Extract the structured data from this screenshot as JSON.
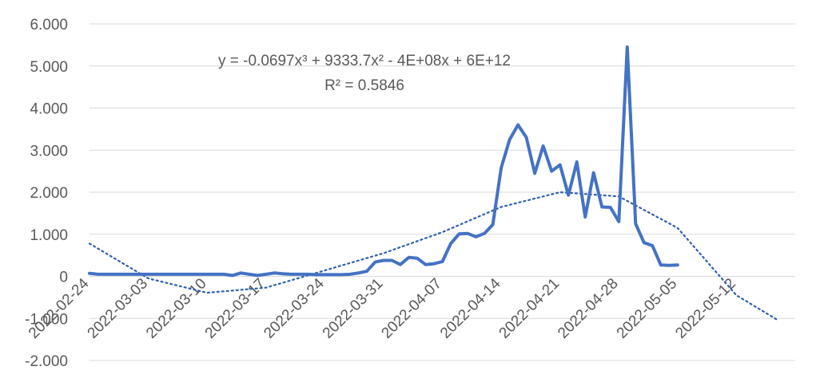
{
  "chart_data": {
    "type": "line",
    "title": "",
    "xlabel": "",
    "ylabel": "",
    "ylim": [
      -2000,
      6000
    ],
    "xlim": [
      "2022-02-24",
      "2022-05-19"
    ],
    "y_tick_labels": [
      "-2.000",
      "-1.000",
      "0",
      "1.000",
      "2.000",
      "3.000",
      "4.000",
      "5.000",
      "6.000"
    ],
    "y_tick_values": [
      -2000,
      -1000,
      0,
      1000,
      2000,
      3000,
      4000,
      5000,
      6000
    ],
    "x_tick_labels": [
      "2022-02-24",
      "2022-03-03",
      "2022-03-10",
      "2022-03-17",
      "2022-03-24",
      "2022-03-31",
      "2022-04-07",
      "2022-04-14",
      "2022-04-21",
      "2022-04-28",
      "2022-05-05",
      "2022-05-12"
    ],
    "grid": true,
    "legend": "none",
    "colors": {
      "series": "#4472c4",
      "trendline": "#2e5fb0",
      "grid": "#d9d9d9",
      "text": "#595959"
    },
    "series": [
      {
        "x": [
          "2022-02-24",
          "2022-02-25",
          "2022-02-26",
          "2022-02-27",
          "2022-02-28",
          "2022-03-01",
          "2022-03-02",
          "2022-03-03",
          "2022-03-04",
          "2022-03-05",
          "2022-03-06",
          "2022-03-07",
          "2022-03-08",
          "2022-03-09",
          "2022-03-10",
          "2022-03-11",
          "2022-03-12",
          "2022-03-13",
          "2022-03-14",
          "2022-03-15",
          "2022-03-16",
          "2022-03-17",
          "2022-03-18",
          "2022-03-19",
          "2022-03-20",
          "2022-03-21",
          "2022-03-22",
          "2022-03-23",
          "2022-03-24",
          "2022-03-25",
          "2022-03-26",
          "2022-03-27",
          "2022-03-28",
          "2022-03-29",
          "2022-03-30",
          "2022-03-31",
          "2022-04-01",
          "2022-04-02",
          "2022-04-03",
          "2022-04-04",
          "2022-04-05",
          "2022-04-06",
          "2022-04-07",
          "2022-04-08",
          "2022-04-09",
          "2022-04-10",
          "2022-04-11",
          "2022-04-12",
          "2022-04-13",
          "2022-04-14",
          "2022-04-15",
          "2022-04-16",
          "2022-04-17",
          "2022-04-18",
          "2022-04-19",
          "2022-04-20",
          "2022-04-21",
          "2022-04-22",
          "2022-04-23",
          "2022-04-24",
          "2022-04-25",
          "2022-04-26",
          "2022-04-27",
          "2022-04-28",
          "2022-04-29",
          "2022-04-30",
          "2022-05-01",
          "2022-05-02",
          "2022-05-03",
          "2022-05-04",
          "2022-05-05"
        ],
        "values": [
          70,
          50,
          50,
          50,
          50,
          50,
          50,
          50,
          50,
          50,
          50,
          50,
          50,
          50,
          50,
          50,
          50,
          20,
          80,
          50,
          20,
          50,
          80,
          60,
          50,
          50,
          50,
          40,
          40,
          40,
          40,
          50,
          80,
          120,
          340,
          380,
          380,
          280,
          450,
          430,
          280,
          300,
          350,
          780,
          1010,
          1020,
          940,
          1020,
          1230,
          2580,
          3250,
          3600,
          3300,
          2450,
          3100,
          2500,
          2650,
          1930,
          2720,
          1410,
          2460,
          1650,
          1640,
          1300,
          5450,
          1250,
          800,
          730,
          270,
          260,
          270
        ]
      }
    ],
    "trendline": {
      "type": "polynomial-3",
      "equation_text": "y = -0.0697x³ + 9333.7x² - 4E+08x + 6E+12",
      "r2_text": "R² = 0.5846",
      "x": [
        "2022-02-24",
        "2022-03-03",
        "2022-03-10",
        "2022-03-17",
        "2022-03-24",
        "2022-03-31",
        "2022-04-07",
        "2022-04-14",
        "2022-04-21",
        "2022-04-28",
        "2022-05-05",
        "2022-05-12",
        "2022-05-17"
      ],
      "values": [
        780,
        -50,
        -390,
        -270,
        140,
        550,
        1050,
        1650,
        2000,
        1900,
        1150,
        -450,
        -1050
      ]
    }
  }
}
